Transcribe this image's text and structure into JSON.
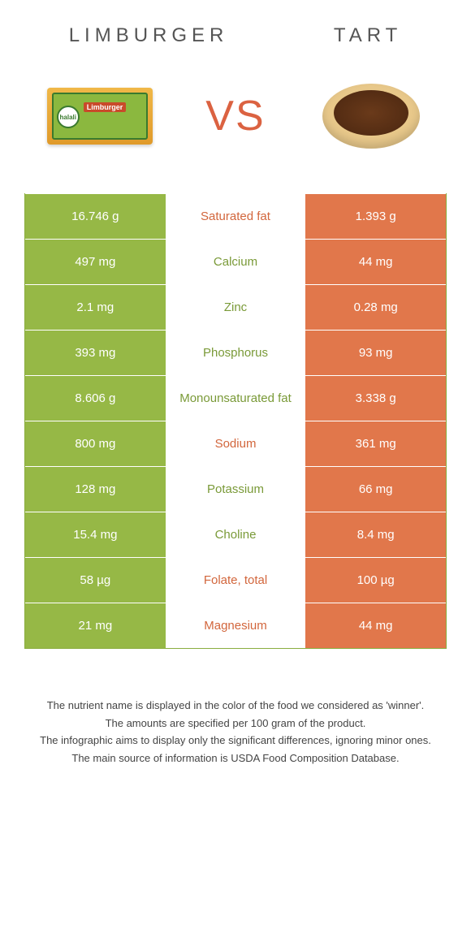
{
  "colors": {
    "left_bg": "#96b846",
    "right_bg": "#e1774b",
    "left_text": "#7a9a38",
    "right_text": "#d2663c",
    "vs": "#db6241",
    "border": "#8aad3f"
  },
  "header": {
    "left": "LIMBURGER",
    "right": "TART",
    "vs": "VS"
  },
  "rows": [
    {
      "left": "16.746 g",
      "name": "Saturated fat",
      "right": "1.393 g",
      "winner": "right"
    },
    {
      "left": "497 mg",
      "name": "Calcium",
      "right": "44 mg",
      "winner": "left"
    },
    {
      "left": "2.1 mg",
      "name": "Zinc",
      "right": "0.28 mg",
      "winner": "left"
    },
    {
      "left": "393 mg",
      "name": "Phosphorus",
      "right": "93 mg",
      "winner": "left"
    },
    {
      "left": "8.606 g",
      "name": "Monounsaturated fat",
      "right": "3.338 g",
      "winner": "left"
    },
    {
      "left": "800 mg",
      "name": "Sodium",
      "right": "361 mg",
      "winner": "right"
    },
    {
      "left": "128 mg",
      "name": "Potassium",
      "right": "66 mg",
      "winner": "left"
    },
    {
      "left": "15.4 mg",
      "name": "Choline",
      "right": "8.4 mg",
      "winner": "left"
    },
    {
      "left": "58 µg",
      "name": "Folate, total",
      "right": "100 µg",
      "winner": "right"
    },
    {
      "left": "21 mg",
      "name": "Magnesium",
      "right": "44 mg",
      "winner": "right"
    }
  ],
  "footnotes": [
    "The nutrient name is displayed in the color of the food we considered as 'winner'.",
    "The amounts are specified per 100 gram of the product.",
    "The infographic aims to display only the significant differences, ignoring minor ones.",
    "The main source of information is USDA Food Composition Database."
  ]
}
